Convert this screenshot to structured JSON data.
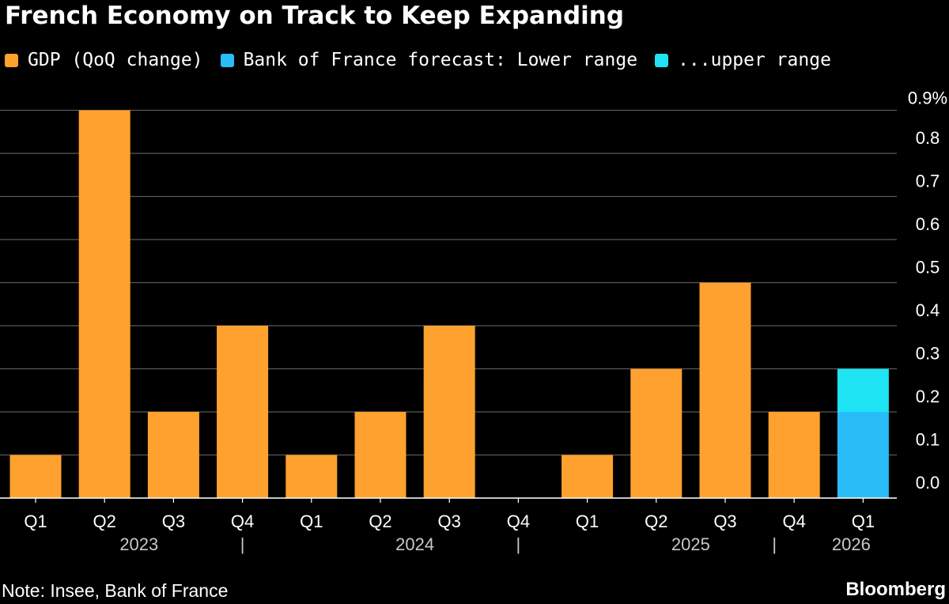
{
  "title": "French Economy on Track to Keep Expanding",
  "legend": [
    {
      "label": "GDP (QoQ change)",
      "color": "#FFA12F"
    },
    {
      "label": "Bank of France forecast: Lower range",
      "color": "#29BCF7"
    },
    {
      "label": "...upper range",
      "color": "#1EE3F2"
    }
  ],
  "chart_data": {
    "type": "bar",
    "categories": [
      "Q1",
      "Q2",
      "Q3",
      "Q4",
      "Q1",
      "Q2",
      "Q3",
      "Q4",
      "Q1",
      "Q2",
      "Q3",
      "Q4",
      "Q1"
    ],
    "year_labels": [
      "2023",
      "2024",
      "2025",
      "2026"
    ],
    "year_separator": "|",
    "series": [
      {
        "name": "GDP (QoQ change)",
        "color": "#FFA12F",
        "values": [
          0.1,
          0.9,
          0.2,
          0.4,
          0.1,
          0.2,
          0.4,
          0.0,
          0.1,
          0.3,
          0.5,
          0.2,
          null
        ]
      },
      {
        "name": "Bank of France forecast: Lower range",
        "color": "#29BCF7",
        "values": [
          null,
          null,
          null,
          null,
          null,
          null,
          null,
          null,
          null,
          null,
          null,
          null,
          0.2
        ]
      },
      {
        "name": "...upper range",
        "color": "#1EE3F2",
        "values": [
          null,
          null,
          null,
          null,
          null,
          null,
          null,
          null,
          null,
          null,
          null,
          null,
          0.1
        ]
      }
    ],
    "stacked": true,
    "ylim": [
      0,
      0.9
    ],
    "y_ticks": [
      "0.0",
      "0.1",
      "0.2",
      "0.3",
      "0.4",
      "0.5",
      "0.6",
      "0.7",
      "0.8",
      "0.9%"
    ],
    "y_axis_side": "right",
    "grid": true
  },
  "note": "Note: Insee, Bank of France",
  "brand": "Bloomberg"
}
